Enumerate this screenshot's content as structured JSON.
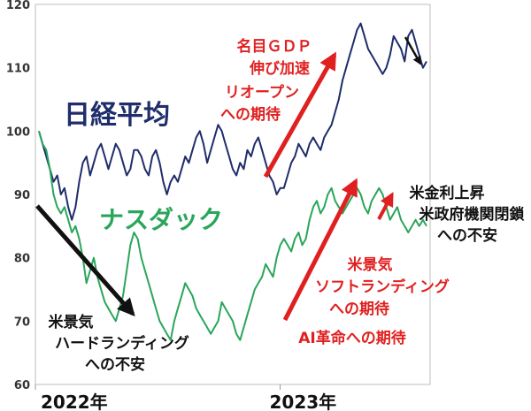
{
  "chart_data": {
    "type": "line",
    "title": "",
    "xlabel": "",
    "ylabel": "",
    "ylim": [
      60,
      120
    ],
    "yticks": [
      60,
      70,
      80,
      90,
      100,
      110,
      120
    ],
    "x_tick_labels": [
      "2022年",
      "2023年"
    ],
    "x_tick_positions": [
      0.0,
      0.62
    ],
    "grid": false,
    "series": [
      {
        "name": "日経平均",
        "color": "#1f2d6b",
        "values": [
          100,
          98,
          96,
          94,
          92,
          93,
          90,
          91,
          88,
          86,
          88,
          92,
          95,
          96,
          93,
          95,
          97,
          98,
          96,
          94,
          96,
          98,
          97,
          95,
          93,
          94,
          97,
          97,
          96,
          94,
          93,
          96,
          97,
          95,
          92,
          90,
          92,
          93,
          92,
          94,
          96,
          95,
          97,
          99,
          100,
          98,
          95,
          97,
          99,
          101,
          100,
          98,
          96,
          94,
          93,
          95,
          94,
          97,
          96,
          98,
          99,
          97,
          95,
          93,
          92,
          90,
          91,
          91,
          93,
          95,
          96,
          98,
          97,
          96,
          98,
          99,
          98,
          97,
          99,
          100,
          101,
          103,
          105,
          108,
          110,
          112,
          114,
          116,
          117,
          115,
          113,
          112,
          111,
          110,
          109,
          110,
          112,
          115,
          114,
          113,
          111,
          115,
          116,
          114,
          112,
          110,
          111
        ]
      },
      {
        "name": "ナスダック",
        "color": "#2aa65a",
        "values": [
          100,
          98,
          97,
          94,
          90,
          88,
          87,
          88,
          86,
          84,
          85,
          83,
          80,
          76,
          78,
          80,
          77,
          75,
          73,
          72,
          71,
          70,
          72,
          74,
          78,
          82,
          84,
          83,
          80,
          78,
          76,
          74,
          72,
          70,
          69,
          68,
          67,
          70,
          72,
          74,
          76,
          75,
          74,
          72,
          71,
          70,
          69,
          68,
          69,
          70,
          73,
          72,
          71,
          70,
          68,
          67,
          69,
          71,
          73,
          75,
          76,
          77,
          79,
          78,
          77,
          80,
          82,
          83,
          82,
          81,
          83,
          84,
          82,
          83,
          86,
          88,
          89,
          87,
          88,
          90,
          91,
          89,
          88,
          87,
          88,
          89,
          90,
          91,
          90,
          88,
          87,
          89,
          90,
          91,
          90,
          88,
          86,
          87,
          88,
          86,
          85,
          84,
          85,
          86,
          85,
          86,
          85
        ]
      }
    ],
    "annotations": [
      {
        "text": [
          "名目ＧＤＰ",
          "伸び加速",
          "リオープン",
          "への期待"
        ],
        "color": "#e02020"
      },
      {
        "text": [
          "米景気",
          "ソフトランディング",
          "への期待"
        ],
        "color": "#e02020"
      },
      {
        "text": [
          "AI革命への期待"
        ],
        "color": "#e02020"
      },
      {
        "text": [
          "米景気",
          "ハードランディング",
          "への不安"
        ],
        "color": "#111111"
      },
      {
        "text": [
          "米金利上昇",
          "米政府機関閉鎖",
          "への不安"
        ],
        "color": "#111111"
      }
    ]
  }
}
